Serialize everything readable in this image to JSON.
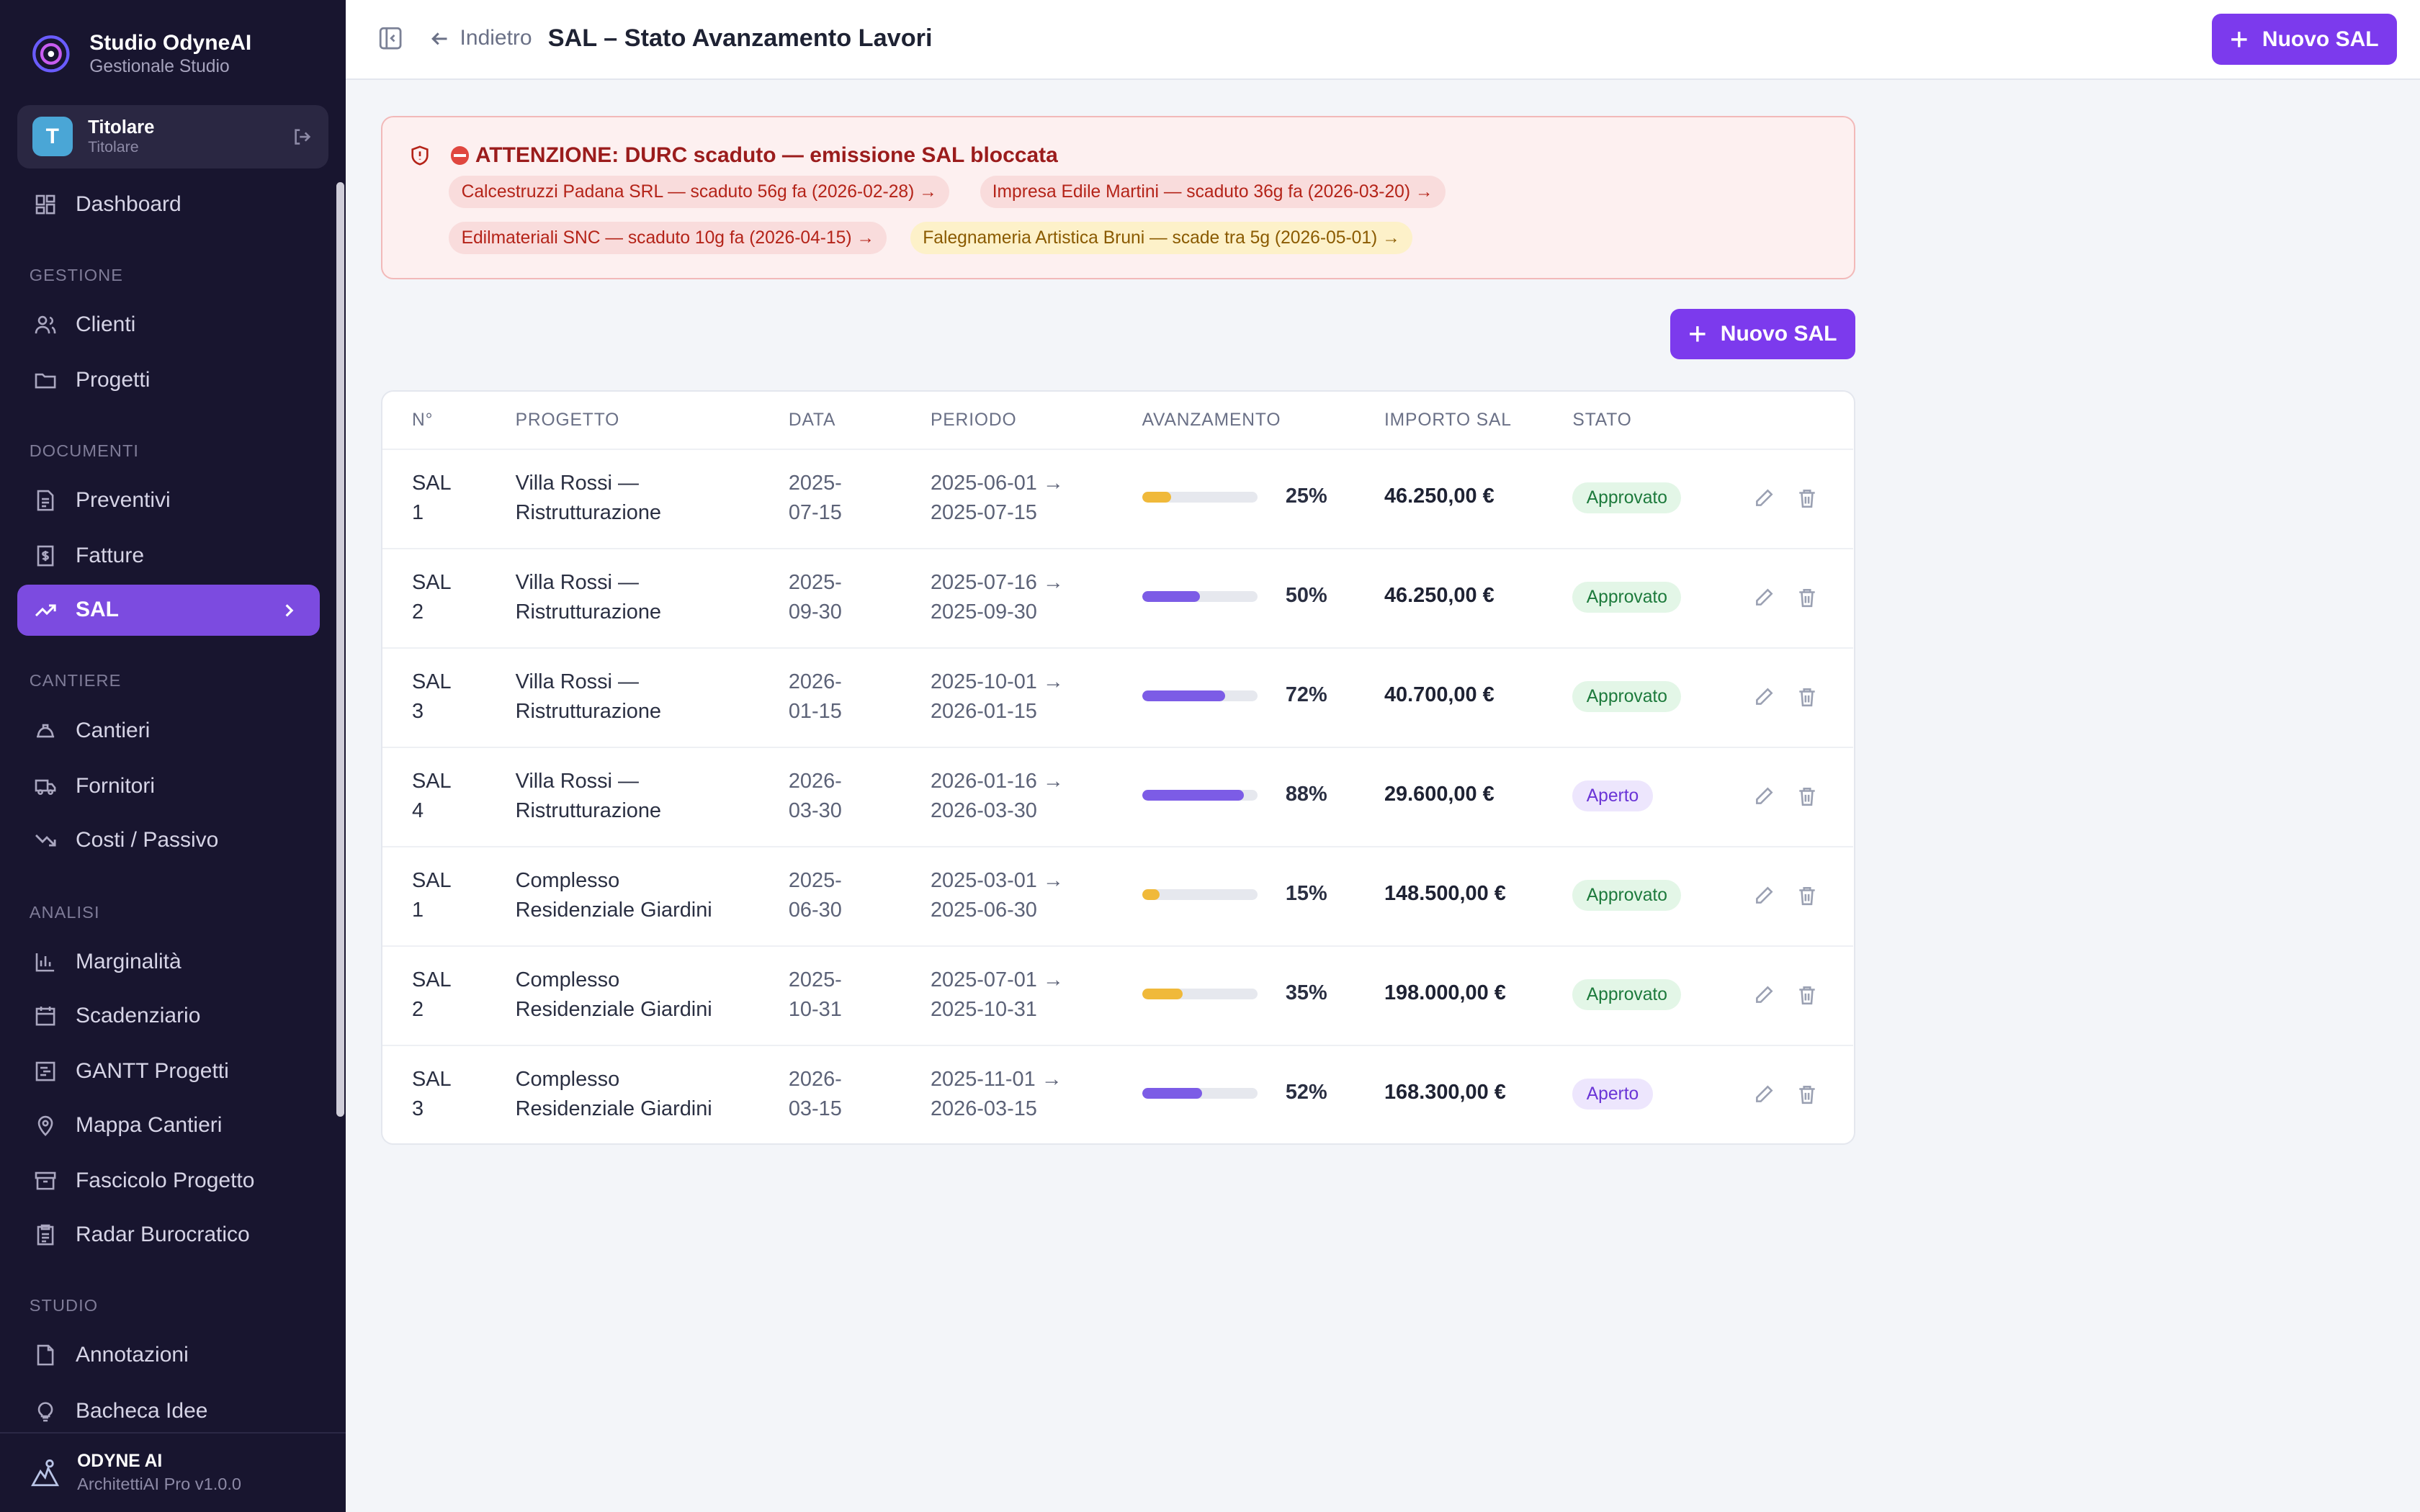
{
  "sidebar": {
    "brand_title": "Studio OdyneAI",
    "brand_subtitle": "Gestionale Studio",
    "user": {
      "initial": "T",
      "name": "Titolare",
      "role": "Titolare"
    },
    "items": {
      "dashboard": "Dashboard",
      "clienti": "Clienti",
      "progetti": "Progetti",
      "preventivi": "Preventivi",
      "fatture": "Fatture",
      "sal": "SAL",
      "cantieri": "Cantieri",
      "fornitori": "Fornitori",
      "costi": "Costi / Passivo",
      "marginalita": "Marginalità",
      "scadenziario": "Scadenziario",
      "gantt": "GANTT Progetti",
      "mappa": "Mappa Cantieri",
      "fascicolo": "Fascicolo Progetto",
      "radar": "Radar Burocratico",
      "annotazioni": "Annotazioni",
      "bacheca": "Bacheca Idee"
    },
    "sections": {
      "gestione": "GESTIONE",
      "documenti": "DOCUMENTI",
      "cantiere": "CANTIERE",
      "analisi": "ANALISI",
      "studio": "STUDIO"
    },
    "footer_title": "ODYNE AI",
    "footer_subtitle": "ArchitettiAI Pro v1.0.0"
  },
  "topbar": {
    "back_label": "Indietro",
    "page_title": "SAL – Stato Avanzamento Lavori",
    "new_button": "Nuovo SAL"
  },
  "alert": {
    "title": "ATTENZIONE: DURC scaduto — emissione SAL bloccata",
    "chips": [
      "Calcestruzzi Padana SRL — scaduto 56g fa (2026-02-28) →",
      "Impresa Edile Martini — scaduto 36g fa (2026-03-20) →",
      "Edilmateriali SNC — scaduto 10g fa (2026-04-15) →",
      "Falegnameria Artistica Bruni — scade tra 5g (2026-05-01) →"
    ]
  },
  "content_button": "Nuovo SAL",
  "table": {
    "headers": [
      "N°",
      "PROGETTO",
      "DATA",
      "PERIODO",
      "AVANZAMENTO",
      "IMPORTO SAL",
      "STATO"
    ],
    "rows": [
      {
        "num_a": "SAL",
        "num_b": "1",
        "project_a": "Villa Rossi —",
        "project_b": "Ristrutturazione",
        "date_a": "2025-",
        "date_b": "07-15",
        "period_a": "2025-06-01 →",
        "period_b": "2025-07-15",
        "progress": 25,
        "progress_label": "25%",
        "amount": "46.250,00 €",
        "status": "Approvato"
      },
      {
        "num_a": "SAL",
        "num_b": "2",
        "project_a": "Villa Rossi —",
        "project_b": "Ristrutturazione",
        "date_a": "2025-",
        "date_b": "09-30",
        "period_a": "2025-07-16 →",
        "period_b": "2025-09-30",
        "progress": 50,
        "progress_label": "50%",
        "amount": "46.250,00 €",
        "status": "Approvato"
      },
      {
        "num_a": "SAL",
        "num_b": "3",
        "project_a": "Villa Rossi —",
        "project_b": "Ristrutturazione",
        "date_a": "2026-",
        "date_b": "01-15",
        "period_a": "2025-10-01 →",
        "period_b": "2026-01-15",
        "progress": 72,
        "progress_label": "72%",
        "amount": "40.700,00 €",
        "status": "Approvato"
      },
      {
        "num_a": "SAL",
        "num_b": "4",
        "project_a": "Villa Rossi —",
        "project_b": "Ristrutturazione",
        "date_a": "2026-",
        "date_b": "03-30",
        "period_a": "2026-01-16 →",
        "period_b": "2026-03-30",
        "progress": 88,
        "progress_label": "88%",
        "amount": "29.600,00 €",
        "status": "Aperto"
      },
      {
        "num_a": "SAL",
        "num_b": "1",
        "project_a": "Complesso",
        "project_b": "Residenziale Giardini",
        "date_a": "2025-",
        "date_b": "06-30",
        "period_a": "2025-03-01 →",
        "period_b": "2025-06-30",
        "progress": 15,
        "progress_label": "15%",
        "amount": "148.500,00 €",
        "status": "Approvato"
      },
      {
        "num_a": "SAL",
        "num_b": "2",
        "project_a": "Complesso",
        "project_b": "Residenziale Giardini",
        "date_a": "2025-",
        "date_b": "10-31",
        "period_a": "2025-07-01 →",
        "period_b": "2025-10-31",
        "progress": 35,
        "progress_label": "35%",
        "amount": "198.000,00 €",
        "status": "Approvato"
      },
      {
        "num_a": "SAL",
        "num_b": "3",
        "project_a": "Complesso",
        "project_b": "Residenziale Giardini",
        "date_a": "2026-",
        "date_b": "03-15",
        "period_a": "2025-11-01 →",
        "period_b": "2026-03-15",
        "progress": 52,
        "progress_label": "52%",
        "amount": "168.300,00 €",
        "status": "Aperto"
      }
    ]
  },
  "colors": {
    "accent": "#7c3aed",
    "progress_high": "#7c5ce6",
    "progress_low": "#f0b93a",
    "sidebar_bg": "#18152f"
  }
}
